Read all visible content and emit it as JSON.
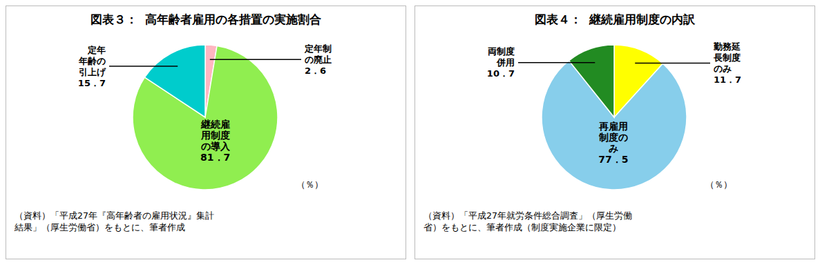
{
  "chart_data": [
    {
      "type": "pie",
      "title": "図表３：  高年齢者雇用の各措置の実施割合",
      "categories": [
        "定年制\nの廃止",
        "継続雇\n用制度\nの導入",
        "定年\n年齢の\n引上げ"
      ],
      "values": [
        2.6,
        81.7,
        15.7
      ],
      "value_labels": [
        "2．6",
        "81．7",
        "15．7"
      ],
      "colors": [
        "#FFB6C1",
        "#90EE50",
        "#00CCCC"
      ],
      "data_labels": true,
      "annotations": [
        "（％）",
        "（資料）「平成27年『高年齢者の雇用状況』集計\n結果」（厚生労働省）をもとに、筆者作成"
      ]
    },
    {
      "type": "pie",
      "title": "図表４：  継続雇用制度の内訳",
      "categories": [
        "勤務延\n長制度\nのみ",
        "再雇用\n制度の\nみ",
        "両制度\n併用"
      ],
      "values": [
        11.7,
        77.5,
        10.7
      ],
      "value_labels": [
        "11．7",
        "77．5",
        "10．7"
      ],
      "colors": [
        "#FFFF00",
        "#87CEEB",
        "#228B22"
      ],
      "data_labels": true,
      "annotations": [
        "（％）",
        "（資料）「平成27年就労条件総合調査」（厚生労働\n省）をもとに、筆者作成（制度実施企業に限定）"
      ]
    }
  ]
}
